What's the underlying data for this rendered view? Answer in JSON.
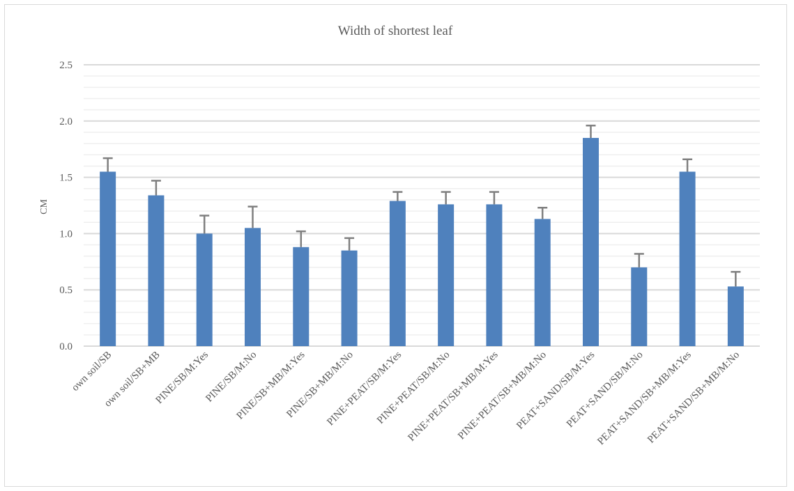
{
  "chart_data": {
    "type": "bar",
    "title": "Width of shortest leaf",
    "xlabel": "",
    "ylabel": "CM",
    "ylim": [
      0,
      2.5
    ],
    "yticks": [
      "0.0",
      "0.5",
      "1.0",
      "1.5",
      "2.0",
      "2.5"
    ],
    "minor_gridlines": true,
    "legend": "none",
    "bar_color": "#4f81bd",
    "errorbar_color": "#7f7f7f",
    "categories": [
      "own soil/SB",
      "own soil/SB+MB",
      "PINE/SB/M:Yes",
      "PINE/SB/M:No",
      "PINE/SB+MB/M:Yes",
      "PINE/SB+MB/M:No",
      "PINE+PEAT/SB/M:Yes",
      "PINE+PEAT/SB/M:No",
      "PINE+PEAT/SB+MB/M:Yes",
      "PINE+PEAT/SB+MB/M:No",
      "PEAT+SAND/SB/M:Yes",
      "PEAT+SAND/SB/M:No",
      "PEAT+SAND/SB+MB/M:Yes",
      "PEAT+SAND/SB+MB/M:No"
    ],
    "values": [
      1.55,
      1.34,
      1.0,
      1.05,
      0.88,
      0.85,
      1.29,
      1.26,
      1.26,
      1.13,
      1.85,
      0.7,
      1.55,
      0.53
    ],
    "error_upper": [
      0.12,
      0.13,
      0.16,
      0.19,
      0.14,
      0.11,
      0.08,
      0.11,
      0.11,
      0.1,
      0.11,
      0.12,
      0.11,
      0.13
    ]
  }
}
